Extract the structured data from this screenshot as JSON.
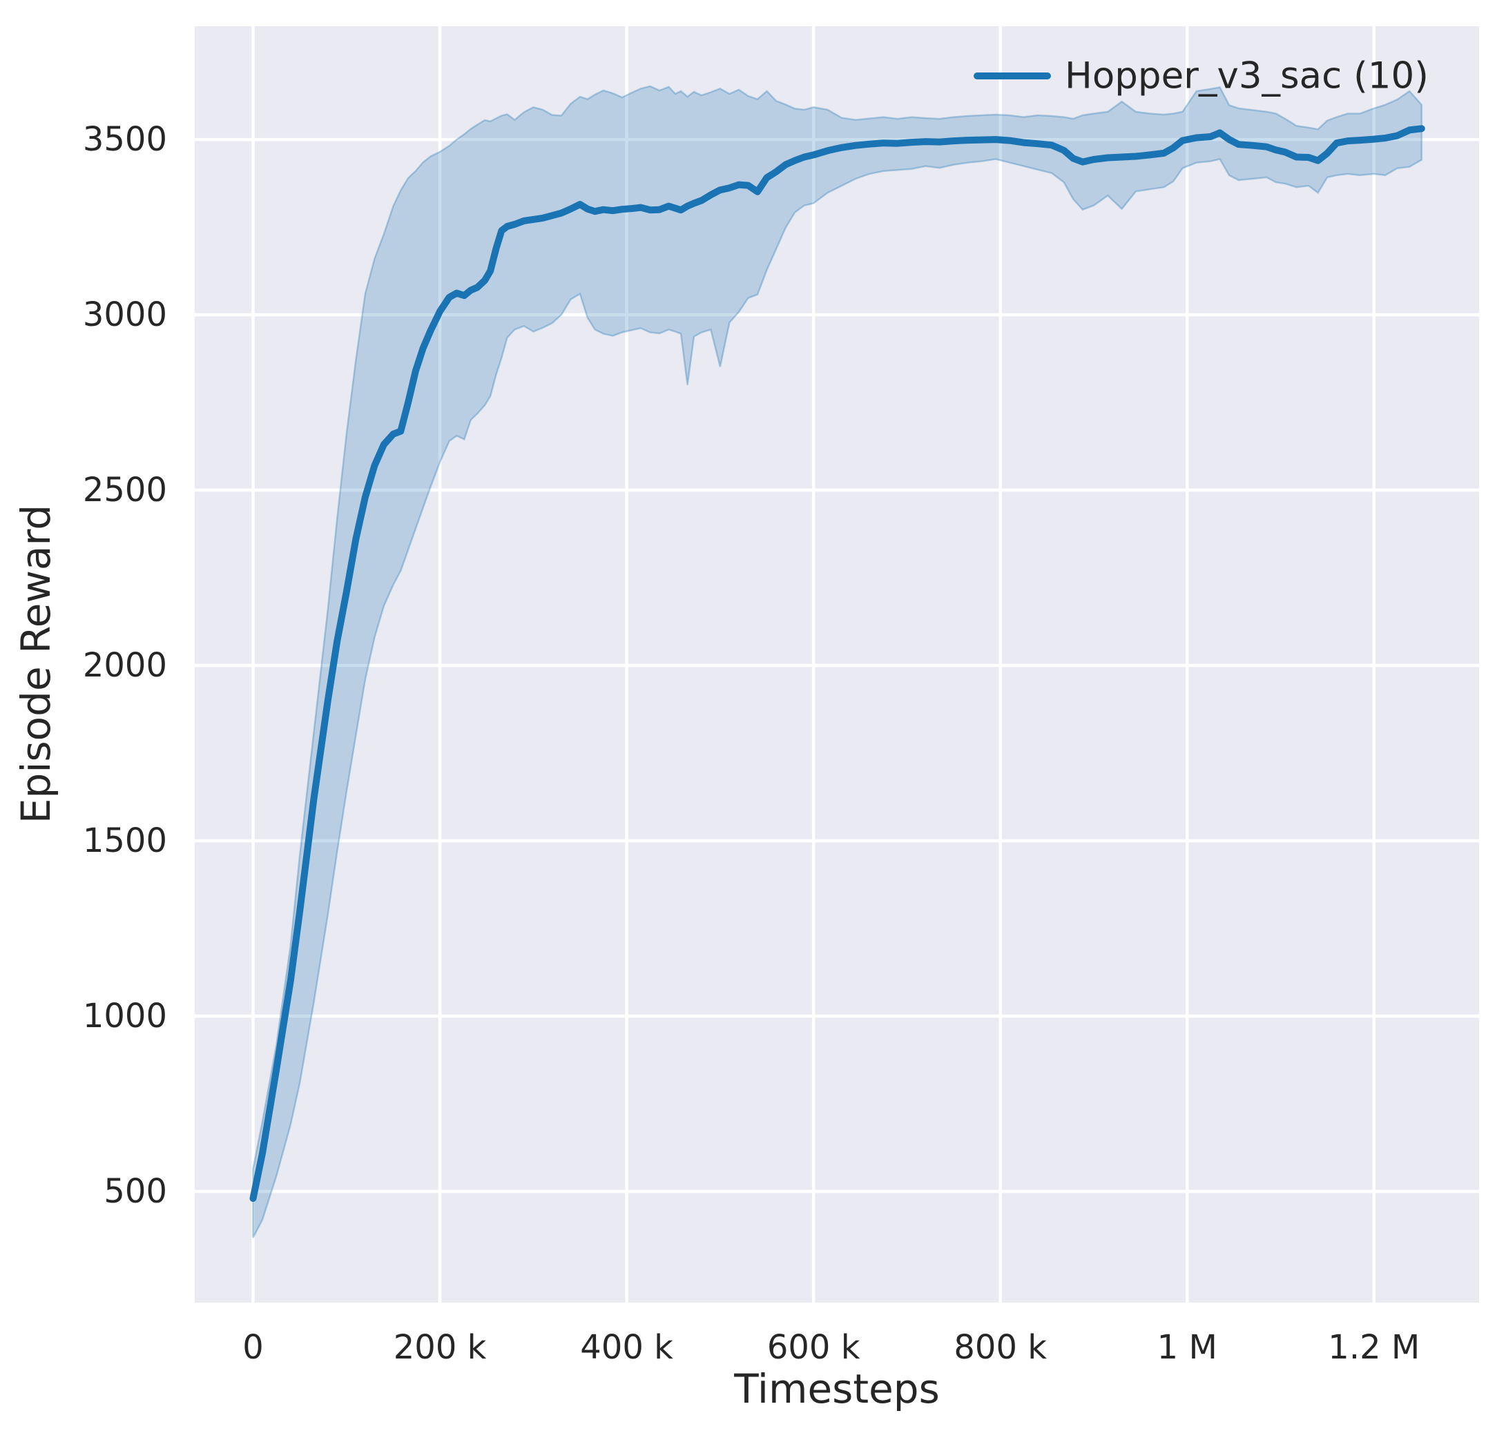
{
  "chart_data": {
    "type": "line",
    "title": "",
    "xlabel": "Timesteps",
    "ylabel": "Episode Reward",
    "legend": {
      "label": "Hopper_v3_sac (10)",
      "position": "upper right",
      "frame": false
    },
    "grid": true,
    "x_unit": "timesteps (values stored in thousands of steps)",
    "xlim_thousands": [
      -62.5,
      1312.5
    ],
    "ylim": [
      183,
      3823
    ],
    "x_tick_values_thousands": [
      0,
      200,
      400,
      600,
      800,
      1000,
      1200
    ],
    "x_tick_labels": [
      "0",
      "200 k",
      "400 k",
      "600 k",
      "800 k",
      "1 M",
      "1.2 M"
    ],
    "y_tick_values": [
      500,
      1000,
      1500,
      2000,
      2500,
      3000,
      3500
    ],
    "y_tick_labels": [
      "500",
      "1000",
      "1500",
      "2000",
      "2500",
      "3000",
      "3500"
    ],
    "colors": {
      "line": "#1a73b2",
      "band_fill": "rgba(31,119,180,0.24)",
      "band_edge": "rgba(31,119,180,0.32)",
      "plot_background": "#eaeaf2",
      "gridline": "#ffffff",
      "text": "#262626"
    },
    "series": [
      {
        "name": "Hopper_v3_sac (10)",
        "x_thousands": [
          0,
          10,
          25,
          40,
          50,
          65,
          80,
          90,
          100,
          110,
          120,
          130,
          140,
          150,
          158,
          166,
          174,
          182,
          190,
          200,
          210,
          218,
          226,
          233,
          240,
          248,
          254,
          260,
          266,
          272,
          280,
          290,
          300,
          310,
          320,
          330,
          340,
          350,
          358,
          366,
          375,
          385,
          395,
          405,
          415,
          425,
          435,
          445,
          452,
          458,
          465,
          472,
          480,
          490,
          500,
          510,
          520,
          530,
          540,
          550,
          560,
          570,
          580,
          590,
          600,
          615,
          630,
          645,
          660,
          675,
          690,
          705,
          720,
          735,
          750,
          765,
          780,
          795,
          810,
          825,
          840,
          855,
          868,
          878,
          888,
          900,
          915,
          930,
          945,
          960,
          975,
          985,
          995,
          1010,
          1025,
          1035,
          1045,
          1055,
          1070,
          1085,
          1095,
          1105,
          1117,
          1130,
          1140,
          1150,
          1160,
          1172,
          1185,
          1200,
          1212,
          1225,
          1238,
          1251
        ],
        "mean": [
          480,
          610,
          850,
          1100,
          1300,
          1620,
          1900,
          2070,
          2210,
          2360,
          2480,
          2570,
          2630,
          2660,
          2668,
          2750,
          2840,
          2905,
          2955,
          3010,
          3050,
          3062,
          3055,
          3070,
          3078,
          3098,
          3125,
          3188,
          3240,
          3252,
          3258,
          3268,
          3272,
          3276,
          3283,
          3290,
          3302,
          3315,
          3302,
          3295,
          3300,
          3297,
          3301,
          3303,
          3306,
          3299,
          3300,
          3310,
          3304,
          3299,
          3310,
          3318,
          3326,
          3342,
          3356,
          3362,
          3371,
          3369,
          3351,
          3391,
          3408,
          3428,
          3440,
          3450,
          3456,
          3468,
          3477,
          3483,
          3487,
          3490,
          3489,
          3492,
          3494,
          3493,
          3496,
          3498,
          3499,
          3500,
          3497,
          3491,
          3488,
          3484,
          3469,
          3446,
          3436,
          3443,
          3448,
          3450,
          3452,
          3456,
          3461,
          3476,
          3497,
          3505,
          3508,
          3519,
          3500,
          3486,
          3483,
          3479,
          3470,
          3464,
          3450,
          3449,
          3440,
          3461,
          3490,
          3496,
          3498,
          3501,
          3504,
          3511,
          3527,
          3531
        ],
        "band_lower": [
          368,
          420,
          545,
          690,
          810,
          1040,
          1290,
          1470,
          1640,
          1800,
          1960,
          2080,
          2170,
          2230,
          2270,
          2330,
          2390,
          2450,
          2510,
          2580,
          2640,
          2655,
          2645,
          2700,
          2718,
          2742,
          2768,
          2828,
          2878,
          2935,
          2958,
          2968,
          2952,
          2963,
          2976,
          3000,
          3044,
          3060,
          2992,
          2958,
          2946,
          2940,
          2950,
          2956,
          2962,
          2950,
          2947,
          2958,
          2952,
          2946,
          2800,
          2938,
          2950,
          2958,
          2852,
          2978,
          3008,
          3048,
          3058,
          3128,
          3188,
          3248,
          3292,
          3312,
          3318,
          3348,
          3368,
          3388,
          3402,
          3410,
          3413,
          3416,
          3424,
          3419,
          3428,
          3434,
          3438,
          3444,
          3434,
          3424,
          3414,
          3404,
          3378,
          3330,
          3300,
          3312,
          3340,
          3302,
          3352,
          3358,
          3364,
          3380,
          3418,
          3434,
          3438,
          3444,
          3398,
          3384,
          3388,
          3392,
          3378,
          3374,
          3364,
          3368,
          3348,
          3392,
          3398,
          3402,
          3398,
          3402,
          3398,
          3418,
          3422,
          3442
        ],
        "band_upper": [
          565,
          700,
          920,
          1200,
          1460,
          1810,
          2160,
          2420,
          2660,
          2870,
          3060,
          3160,
          3230,
          3310,
          3355,
          3390,
          3410,
          3435,
          3452,
          3465,
          3482,
          3500,
          3515,
          3530,
          3542,
          3555,
          3552,
          3560,
          3568,
          3572,
          3556,
          3578,
          3592,
          3585,
          3570,
          3568,
          3602,
          3622,
          3615,
          3628,
          3640,
          3632,
          3620,
          3633,
          3645,
          3652,
          3640,
          3650,
          3630,
          3638,
          3622,
          3636,
          3626,
          3635,
          3645,
          3630,
          3642,
          3624,
          3615,
          3638,
          3610,
          3600,
          3588,
          3585,
          3592,
          3585,
          3562,
          3556,
          3560,
          3564,
          3559,
          3564,
          3561,
          3559,
          3564,
          3567,
          3569,
          3571,
          3569,
          3564,
          3569,
          3567,
          3564,
          3559,
          3569,
          3574,
          3579,
          3608,
          3579,
          3574,
          3571,
          3574,
          3579,
          3638,
          3644,
          3649,
          3598,
          3589,
          3584,
          3579,
          3574,
          3559,
          3539,
          3534,
          3529,
          3554,
          3564,
          3574,
          3574,
          3589,
          3599,
          3614,
          3638,
          3599
        ]
      }
    ]
  }
}
